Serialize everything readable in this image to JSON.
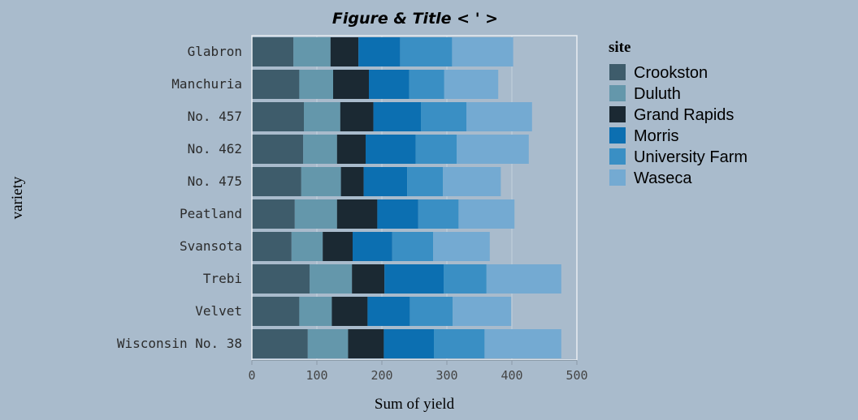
{
  "chart_data": {
    "type": "bar",
    "orientation": "horizontal",
    "stacked": true,
    "title": "Figure & Title < ' >",
    "xlabel": "Sum of yield",
    "ylabel": "variety",
    "xlim": [
      0,
      500
    ],
    "x_ticks": [
      0,
      100,
      200,
      300,
      400,
      500
    ],
    "grid": true,
    "legend": {
      "title": "site",
      "placement": "right"
    },
    "categories": [
      "Glabron",
      "Manchuria",
      "No. 457",
      "No. 462",
      "No. 475",
      "Peatland",
      "Svansota",
      "Trebi",
      "Velvet",
      "Wisconsin No. 38"
    ],
    "series": [
      {
        "name": "Crookston",
        "color": "#3e5c6b",
        "values": [
          64,
          73,
          80,
          79,
          76,
          66,
          61,
          89,
          73,
          86
        ]
      },
      {
        "name": "Duluth",
        "color": "#6497ab",
        "values": [
          57,
          52,
          56,
          52,
          61,
          65,
          48,
          65,
          50,
          62
        ]
      },
      {
        "name": "Grand Rapids",
        "color": "#1b2933",
        "values": [
          43,
          55,
          51,
          44,
          35,
          62,
          46,
          50,
          55,
          55
        ]
      },
      {
        "name": "Morris",
        "color": "#0c6fb1",
        "values": [
          64,
          62,
          73,
          77,
          67,
          63,
          61,
          91,
          65,
          77
        ]
      },
      {
        "name": "University Farm",
        "color": "#3a8fc4",
        "values": [
          80,
          54,
          70,
          63,
          55,
          62,
          63,
          66,
          66,
          78
        ]
      },
      {
        "name": "Waseca",
        "color": "#74aad2",
        "values": [
          94,
          83,
          101,
          111,
          89,
          86,
          87,
          115,
          90,
          118
        ]
      }
    ]
  }
}
